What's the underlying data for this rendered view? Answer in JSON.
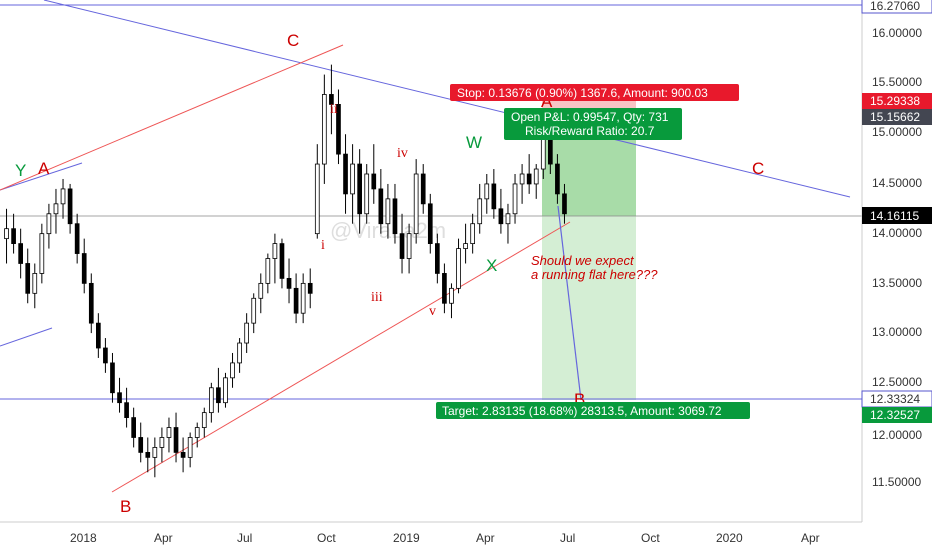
{
  "chart_data": {
    "type": "candlestick",
    "title": "",
    "xlabel": "",
    "ylabel": "",
    "ylim": [
      11.1,
      16.35
    ],
    "grid": false,
    "price_axis_ticks": [
      "16.00000",
      "15.50000",
      "15.00000",
      "14.50000",
      "14.00000",
      "13.50000",
      "13.00000",
      "12.50000",
      "12.00000",
      "11.50000"
    ],
    "time_axis_ticks": [
      "2018",
      "Apr",
      "Jul",
      "Oct",
      "2019",
      "Apr",
      "Jul",
      "Oct",
      "2020",
      "Apr"
    ],
    "price_tags": [
      {
        "label": "16.27060",
        "value": 16.2706,
        "bg": "#ffffff",
        "fg": "#333333",
        "border": "#5555cc"
      },
      {
        "label": "15.29338",
        "value": 15.29338,
        "bg": "#e8192c",
        "fg": "#ffffff"
      },
      {
        "label": "15.15662",
        "value": 15.15662,
        "bg": "#434651",
        "fg": "#ffffff"
      },
      {
        "label": "14.16115",
        "value": 14.16115,
        "bg": "#000000",
        "fg": "#ffffff"
      },
      {
        "label": "12.33324",
        "value": 12.33324,
        "bg": "#ffffff",
        "fg": "#333333",
        "border": "#5555cc"
      },
      {
        "label": "12.32527",
        "value": 12.32527,
        "bg": "#089a3c",
        "fg": "#ffffff"
      }
    ],
    "series": [
      {
        "name": "",
        "values": [
          [
            13.95,
            14.25,
            13.7,
            14.05
          ],
          [
            14.05,
            14.2,
            13.8,
            13.9
          ],
          [
            13.9,
            14.05,
            13.55,
            13.7
          ],
          [
            13.7,
            13.85,
            13.3,
            13.4
          ],
          [
            13.4,
            13.7,
            13.25,
            13.6
          ],
          [
            13.6,
            14.1,
            13.5,
            14.0
          ],
          [
            14.0,
            14.3,
            13.85,
            14.2
          ],
          [
            14.2,
            14.45,
            14.0,
            14.3
          ],
          [
            14.3,
            14.55,
            14.15,
            14.45
          ],
          [
            14.45,
            14.5,
            14.0,
            14.1
          ],
          [
            14.1,
            14.2,
            13.7,
            13.8
          ],
          [
            13.8,
            13.95,
            13.4,
            13.5
          ],
          [
            13.5,
            13.6,
            13.0,
            13.1
          ],
          [
            13.1,
            13.2,
            12.75,
            12.85
          ],
          [
            12.85,
            12.95,
            12.6,
            12.7
          ],
          [
            12.7,
            12.8,
            12.3,
            12.4
          ],
          [
            12.4,
            12.55,
            12.2,
            12.3
          ],
          [
            12.3,
            12.45,
            12.05,
            12.15
          ],
          [
            12.15,
            12.25,
            11.85,
            11.95
          ],
          [
            11.95,
            12.1,
            11.7,
            11.8
          ],
          [
            11.8,
            11.95,
            11.6,
            11.75
          ],
          [
            11.75,
            11.95,
            11.55,
            11.85
          ],
          [
            11.85,
            12.05,
            11.7,
            11.95
          ],
          [
            11.95,
            12.15,
            11.8,
            12.05
          ],
          [
            12.05,
            12.2,
            11.7,
            11.8
          ],
          [
            11.8,
            11.95,
            11.6,
            11.75
          ],
          [
            11.75,
            12.0,
            11.65,
            11.95
          ],
          [
            11.95,
            12.1,
            11.85,
            12.05
          ],
          [
            12.05,
            12.25,
            11.95,
            12.2
          ],
          [
            12.2,
            12.5,
            12.1,
            12.45
          ],
          [
            12.45,
            12.65,
            12.2,
            12.3
          ],
          [
            12.3,
            12.6,
            12.25,
            12.55
          ],
          [
            12.55,
            12.8,
            12.45,
            12.7
          ],
          [
            12.7,
            12.95,
            12.6,
            12.9
          ],
          [
            12.9,
            13.2,
            12.8,
            13.1
          ],
          [
            13.1,
            13.4,
            13.0,
            13.35
          ],
          [
            13.35,
            13.6,
            13.2,
            13.5
          ],
          [
            13.5,
            13.8,
            13.4,
            13.75
          ],
          [
            13.75,
            14.0,
            13.5,
            13.9
          ],
          [
            13.9,
            13.95,
            13.45,
            13.55
          ],
          [
            13.55,
            13.75,
            13.3,
            13.45
          ],
          [
            13.45,
            13.6,
            13.1,
            13.2
          ],
          [
            13.2,
            13.6,
            13.1,
            13.5
          ],
          [
            13.5,
            13.65,
            13.25,
            13.4
          ],
          [
            14.0,
            14.9,
            13.95,
            14.7
          ],
          [
            14.7,
            15.6,
            14.5,
            15.4
          ],
          [
            15.4,
            15.7,
            15.0,
            15.3
          ],
          [
            15.3,
            15.45,
            14.7,
            14.8
          ],
          [
            14.8,
            15.0,
            14.2,
            14.4
          ],
          [
            14.4,
            14.9,
            14.1,
            14.7
          ],
          [
            14.7,
            14.85,
            14.0,
            14.2
          ],
          [
            14.2,
            14.7,
            14.1,
            14.6
          ],
          [
            14.6,
            14.9,
            14.3,
            14.45
          ],
          [
            14.45,
            14.65,
            14.0,
            14.1
          ],
          [
            14.1,
            14.5,
            13.95,
            14.35
          ],
          [
            14.35,
            14.5,
            13.9,
            14.0
          ],
          [
            14.0,
            14.2,
            13.6,
            13.75
          ],
          [
            13.75,
            14.1,
            13.6,
            14.0
          ],
          [
            14.0,
            14.75,
            13.9,
            14.6
          ],
          [
            14.6,
            14.7,
            14.2,
            14.3
          ],
          [
            14.3,
            14.4,
            13.8,
            13.9
          ],
          [
            13.9,
            14.0,
            13.5,
            13.6
          ],
          [
            13.6,
            13.7,
            13.2,
            13.3
          ],
          [
            13.3,
            13.5,
            13.15,
            13.45
          ],
          [
            13.45,
            13.95,
            13.4,
            13.85
          ],
          [
            13.85,
            14.1,
            13.7,
            13.9
          ],
          [
            13.9,
            14.2,
            13.8,
            14.1
          ],
          [
            14.1,
            14.5,
            14.0,
            14.35
          ],
          [
            14.35,
            14.6,
            14.2,
            14.5
          ],
          [
            14.5,
            14.65,
            14.15,
            14.25
          ],
          [
            14.25,
            14.45,
            14.0,
            14.1
          ],
          [
            14.1,
            14.3,
            13.9,
            14.2
          ],
          [
            14.2,
            14.6,
            14.1,
            14.5
          ],
          [
            14.5,
            14.7,
            14.3,
            14.6
          ],
          [
            14.6,
            14.8,
            14.4,
            14.5
          ],
          [
            14.5,
            14.7,
            14.35,
            14.65
          ],
          [
            14.65,
            15.1,
            14.55,
            14.95
          ],
          [
            14.95,
            15.15,
            14.6,
            14.7
          ],
          [
            14.7,
            14.8,
            14.3,
            14.4
          ],
          [
            14.4,
            14.5,
            14.1,
            14.2
          ]
        ]
      }
    ],
    "annotations": [
      {
        "text": "Y",
        "color": "#089a3c"
      },
      {
        "text": "A",
        "color": "#cc0000"
      },
      {
        "text": "B",
        "color": "#cc0000"
      },
      {
        "text": "C",
        "color": "#cc0000"
      },
      {
        "text": "ii",
        "color": "#cc0000"
      },
      {
        "text": "iv",
        "color": "#cc0000"
      },
      {
        "text": "i",
        "color": "#cc0000"
      },
      {
        "text": "iii",
        "color": "#cc0000"
      },
      {
        "text": "v",
        "color": "#cc0000"
      },
      {
        "text": "W",
        "color": "#089a3c"
      },
      {
        "text": "X",
        "color": "#089a3c"
      },
      {
        "text": "A",
        "color": "#cc0000"
      },
      {
        "text": "B",
        "color": "#cc0000"
      },
      {
        "text": "C",
        "color": "#cc0000"
      }
    ],
    "watermark": "@ViraLa2m",
    "note_lines": [
      "Should we expect",
      "a running flat here???"
    ],
    "position": {
      "stop_label": "Stop: 0.13676 (0.90%) 1367.6, Amount: 900.03",
      "pnl_label": "Open P&L: 0.99547, Qty: 731",
      "rr_label": "Risk/Reward Ratio: 20.7",
      "target_label": "Target: 2.83135 (18.68%) 28313.5, Amount: 3069.72",
      "entry": 15.15662,
      "stop": 15.29338,
      "target": 12.32527,
      "current": 14.16115
    },
    "colors": {
      "up_candle": "#000000",
      "down_candle": "#000000",
      "trendline_blue": "#6666dd",
      "trendline_red": "#ee5555",
      "profit_zone": "#a8dca8",
      "profit_zone_light": "#d4eed4",
      "stop_zone": "#f7c5c5",
      "label_red": "#cc0000",
      "label_green": "#089a3c"
    }
  }
}
